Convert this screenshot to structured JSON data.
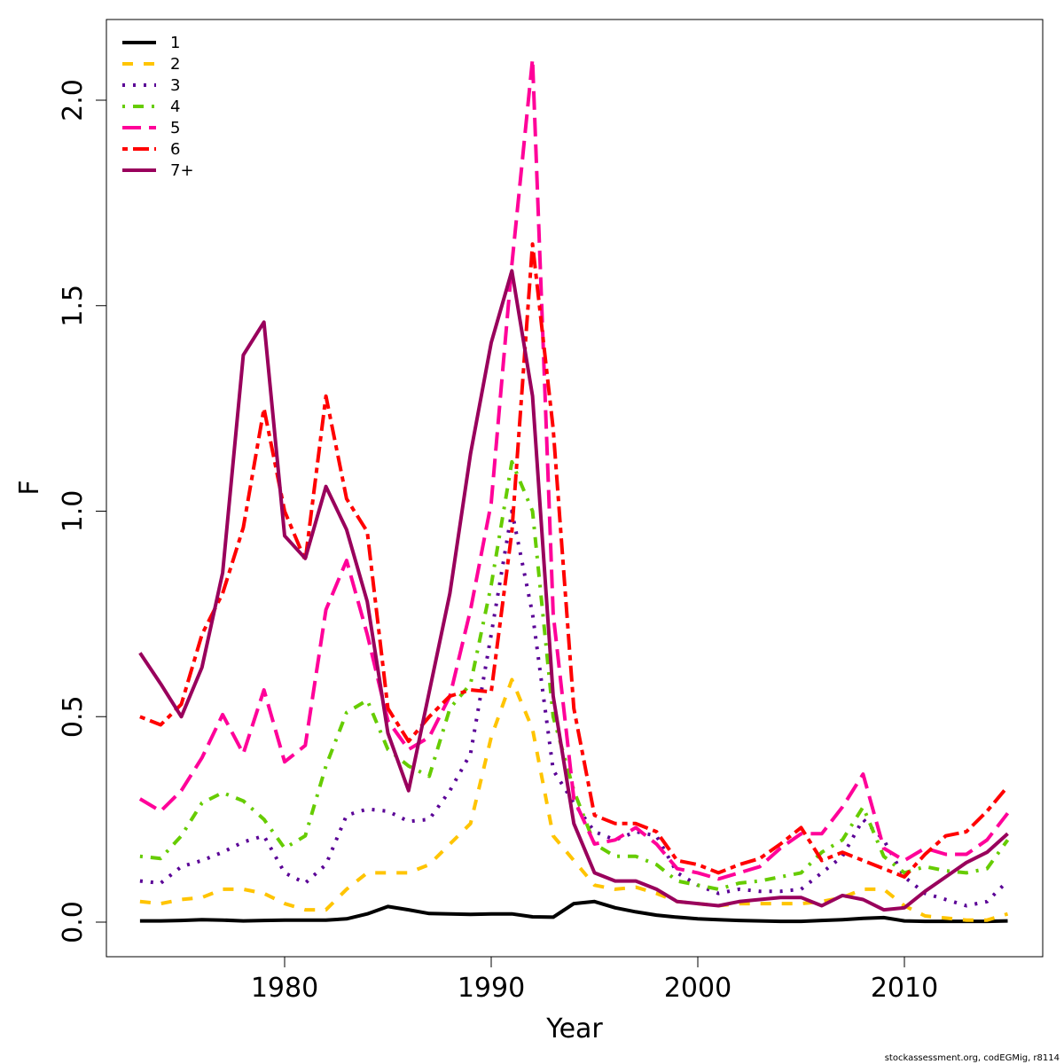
{
  "chart_data": {
    "type": "line",
    "title": "",
    "xlabel": "Year",
    "ylabel": "F",
    "xlim": [
      1973,
      2015
    ],
    "ylim": [
      0,
      2.1
    ],
    "grid": false,
    "legend_position": "top-left",
    "x_ticks": [
      1980,
      1990,
      2000,
      2010
    ],
    "x_tick_labels": [
      "1980",
      "1990",
      "2000",
      "2010"
    ],
    "y_ticks": [
      0,
      0.5,
      1,
      1.5,
      2
    ],
    "y_tick_labels": [
      "0.0",
      "0.5",
      "1.0",
      "1.5",
      "2.0"
    ],
    "x": [
      1973,
      1974,
      1975,
      1976,
      1977,
      1978,
      1979,
      1980,
      1981,
      1982,
      1983,
      1984,
      1985,
      1986,
      1987,
      1988,
      1989,
      1990,
      1991,
      1992,
      1993,
      1994,
      1995,
      1996,
      1997,
      1998,
      1999,
      2000,
      2001,
      2002,
      2003,
      2004,
      2005,
      2006,
      2007,
      2008,
      2009,
      2010,
      2011,
      2012,
      2013,
      2014,
      2015
    ],
    "series": [
      {
        "name": "1",
        "color": "#000000",
        "dash": "",
        "values": [
          0.003,
          0.003,
          0.004,
          0.006,
          0.005,
          0.003,
          0.004,
          0.005,
          0.005,
          0.005,
          0.008,
          0.02,
          0.038,
          0.03,
          0.021,
          0.02,
          0.019,
          0.02,
          0.02,
          0.013,
          0.012,
          0.045,
          0.05,
          0.035,
          0.025,
          0.017,
          0.012,
          0.008,
          0.006,
          0.004,
          0.003,
          0.002,
          0.002,
          0.004,
          0.006,
          0.009,
          0.011,
          0.003,
          0.002,
          0.002,
          0.002,
          0.002,
          0.003
        ]
      },
      {
        "name": "2",
        "color": "#FFC400",
        "dash": "12 12",
        "values": [
          0.05,
          0.045,
          0.055,
          0.06,
          0.08,
          0.08,
          0.07,
          0.045,
          0.03,
          0.03,
          0.08,
          0.12,
          0.12,
          0.12,
          0.14,
          0.19,
          0.24,
          0.45,
          0.59,
          0.47,
          0.21,
          0.15,
          0.09,
          0.08,
          0.085,
          0.07,
          0.05,
          0.045,
          0.04,
          0.045,
          0.045,
          0.045,
          0.045,
          0.05,
          0.06,
          0.08,
          0.08,
          0.04,
          0.015,
          0.01,
          0.005,
          0.005,
          0.02
        ]
      },
      {
        "name": "3",
        "color": "#5A0096",
        "dash": "3 9",
        "values": [
          0.1,
          0.095,
          0.135,
          0.15,
          0.17,
          0.195,
          0.21,
          0.12,
          0.095,
          0.14,
          0.26,
          0.275,
          0.27,
          0.245,
          0.25,
          0.32,
          0.41,
          0.7,
          1.0,
          0.75,
          0.37,
          0.29,
          0.22,
          0.2,
          0.22,
          0.21,
          0.12,
          0.09,
          0.07,
          0.08,
          0.075,
          0.075,
          0.08,
          0.12,
          0.16,
          0.25,
          0.2,
          0.11,
          0.07,
          0.055,
          0.04,
          0.05,
          0.1
        ]
      },
      {
        "name": "4",
        "color": "#66CC00",
        "dash": "3 9 12 9",
        "values": [
          0.16,
          0.155,
          0.21,
          0.29,
          0.315,
          0.295,
          0.25,
          0.18,
          0.21,
          0.38,
          0.51,
          0.54,
          0.42,
          0.38,
          0.355,
          0.52,
          0.58,
          0.82,
          1.12,
          1.0,
          0.5,
          0.32,
          0.19,
          0.16,
          0.16,
          0.14,
          0.1,
          0.09,
          0.08,
          0.095,
          0.1,
          0.11,
          0.12,
          0.17,
          0.2,
          0.28,
          0.16,
          0.12,
          0.135,
          0.125,
          0.12,
          0.13,
          0.2
        ]
      },
      {
        "name": "5",
        "color": "#FF0099",
        "dash": "21 9",
        "values": [
          0.3,
          0.27,
          0.32,
          0.4,
          0.505,
          0.41,
          0.565,
          0.39,
          0.43,
          0.76,
          0.88,
          0.7,
          0.49,
          0.42,
          0.45,
          0.55,
          0.76,
          1.02,
          1.6,
          2.1,
          0.75,
          0.3,
          0.19,
          0.2,
          0.23,
          0.19,
          0.13,
          0.12,
          0.105,
          0.12,
          0.135,
          0.18,
          0.215,
          0.215,
          0.28,
          0.36,
          0.18,
          0.15,
          0.18,
          0.165,
          0.165,
          0.2,
          0.265
        ]
      },
      {
        "name": "6",
        "color": "#FF0000",
        "dash": "6 6 18 6",
        "values": [
          0.5,
          0.48,
          0.53,
          0.7,
          0.8,
          0.96,
          1.25,
          1.0,
          0.88,
          1.28,
          1.03,
          0.95,
          0.52,
          0.44,
          0.5,
          0.55,
          0.565,
          0.56,
          0.95,
          1.65,
          1.2,
          0.52,
          0.26,
          0.24,
          0.24,
          0.22,
          0.15,
          0.14,
          0.12,
          0.14,
          0.155,
          0.19,
          0.23,
          0.15,
          0.17,
          0.15,
          0.13,
          0.11,
          0.165,
          0.21,
          0.22,
          0.27,
          0.33
        ]
      },
      {
        "name": "7+",
        "color": "#99005C",
        "dash": "",
        "values": [
          0.655,
          0.58,
          0.5,
          0.62,
          0.85,
          1.38,
          1.46,
          0.94,
          0.885,
          1.06,
          0.955,
          0.78,
          0.46,
          0.32,
          0.56,
          0.8,
          1.14,
          1.41,
          1.585,
          1.28,
          0.55,
          0.24,
          0.12,
          0.1,
          0.1,
          0.08,
          0.05,
          0.045,
          0.04,
          0.05,
          0.055,
          0.06,
          0.06,
          0.04,
          0.065,
          0.055,
          0.03,
          0.035,
          0.075,
          0.11,
          0.145,
          0.17,
          0.215
        ]
      }
    ]
  },
  "footnote": "stockassessment.org, codEGMig, r8114"
}
